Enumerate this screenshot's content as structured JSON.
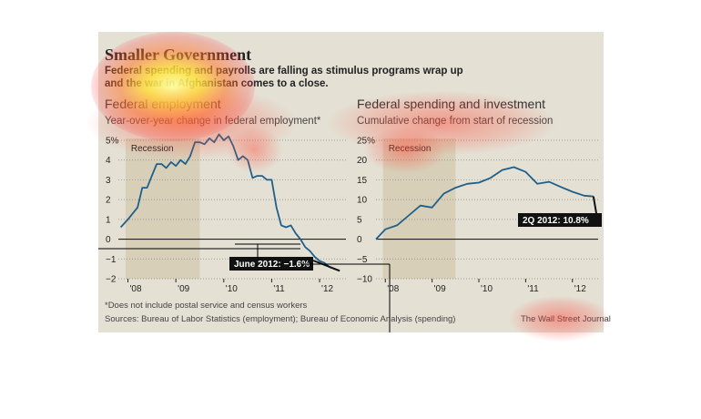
{
  "header": {
    "title": "Smaller Government",
    "deck_line1": "Federal spending and payrolls are falling as stimulus programs wrap up",
    "deck_line2": "and the war in Afghanistan comes to a close."
  },
  "footer": {
    "footnote": "*Does not include postal service and census workers",
    "sources": "Sources: Bureau of Labor Statistics (employment); Bureau of Economic Analysis (spending)",
    "credit": "The Wall Street Journal"
  },
  "colors": {
    "line": "#1f5f8b",
    "recession": "#d8cfb8",
    "panel": "#e4e0d4",
    "callout": "#111111"
  },
  "chart_data": [
    {
      "type": "line",
      "title": "Federal employment",
      "subtitle": "Year-over-year change in federal employment*",
      "ylim": [
        -2,
        5
      ],
      "yticks": [
        -2,
        -1,
        0,
        1,
        2,
        3,
        4,
        5
      ],
      "ytick_labels": [
        "−2",
        "−1",
        "0",
        "1",
        "2",
        "3",
        "4",
        "5%"
      ],
      "xlim": [
        2007.8,
        2012.55
      ],
      "xticks": [
        2008,
        2009,
        2010,
        2011,
        2012
      ],
      "xtick_labels": [
        "'08",
        "'09",
        "'10",
        "'11",
        "'12"
      ],
      "shade": {
        "label": "Recession",
        "from": 2007.95,
        "to": 2009.5
      },
      "annotation": {
        "text": "June 2012: −1.6%",
        "x": 2012.42,
        "y": -1.6
      },
      "series": [
        {
          "x": [
            2007.85,
            2008.0,
            2008.1,
            2008.2,
            2008.3,
            2008.4,
            2008.5,
            2008.6,
            2008.7,
            2008.8,
            2008.9,
            2009.0,
            2009.1,
            2009.2,
            2009.3,
            2009.4,
            2009.5,
            2009.6,
            2009.7,
            2009.8,
            2009.9,
            2010.0,
            2010.1,
            2010.2,
            2010.3,
            2010.4,
            2010.5,
            2010.6,
            2010.7,
            2010.8,
            2010.9,
            2011.0,
            2011.1,
            2011.2,
            2011.3,
            2011.4,
            2011.5,
            2011.6,
            2011.7,
            2011.8,
            2011.9,
            2012.0,
            2012.1,
            2012.2,
            2012.3,
            2012.42
          ],
          "y": [
            0.6,
            1.0,
            1.3,
            1.6,
            2.6,
            2.6,
            3.2,
            3.8,
            3.8,
            3.6,
            3.9,
            3.7,
            4.0,
            3.8,
            4.2,
            4.9,
            4.9,
            4.8,
            5.1,
            4.9,
            5.3,
            5.0,
            5.2,
            4.7,
            4.0,
            4.2,
            4.0,
            3.1,
            3.2,
            3.2,
            3.0,
            3.0,
            1.6,
            0.7,
            0.6,
            0.7,
            0.3,
            0.0,
            -0.4,
            -0.6,
            -0.9,
            -1.1,
            -1.2,
            -1.4,
            -1.5,
            -1.6
          ]
        }
      ]
    },
    {
      "type": "line",
      "title": "Federal spending and investment",
      "subtitle": "Cumulative change from start of recession",
      "ylim": [
        -10,
        25
      ],
      "yticks": [
        -10,
        -5,
        0,
        5,
        10,
        15,
        20,
        25
      ],
      "ytick_labels": [
        "−10",
        "−5",
        "0",
        "5",
        "10",
        "15",
        "20",
        "25%"
      ],
      "xlim": [
        2007.8,
        2012.55
      ],
      "xticks": [
        2008,
        2009,
        2010,
        2011,
        2012
      ],
      "xtick_labels": [
        "'08",
        "'09",
        "'10",
        "'11",
        "'12"
      ],
      "shade": {
        "label": "Recession",
        "from": 2007.95,
        "to": 2009.5
      },
      "annotation": {
        "text": "2Q 2012: 10.8%",
        "x": 2012.45,
        "y": 10.8
      },
      "series": [
        {
          "x": [
            2007.8,
            2008.0,
            2008.25,
            2008.5,
            2008.75,
            2009.0,
            2009.25,
            2009.5,
            2009.75,
            2010.0,
            2010.25,
            2010.5,
            2010.75,
            2011.0,
            2011.25,
            2011.5,
            2011.75,
            2012.0,
            2012.25,
            2012.45
          ],
          "y": [
            0.0,
            2.5,
            3.5,
            6.0,
            8.5,
            8.0,
            11.5,
            13.0,
            14.0,
            14.3,
            15.5,
            17.5,
            18.2,
            17.0,
            14.0,
            14.5,
            13.2,
            12.0,
            11.0,
            10.8
          ]
        }
      ]
    }
  ]
}
